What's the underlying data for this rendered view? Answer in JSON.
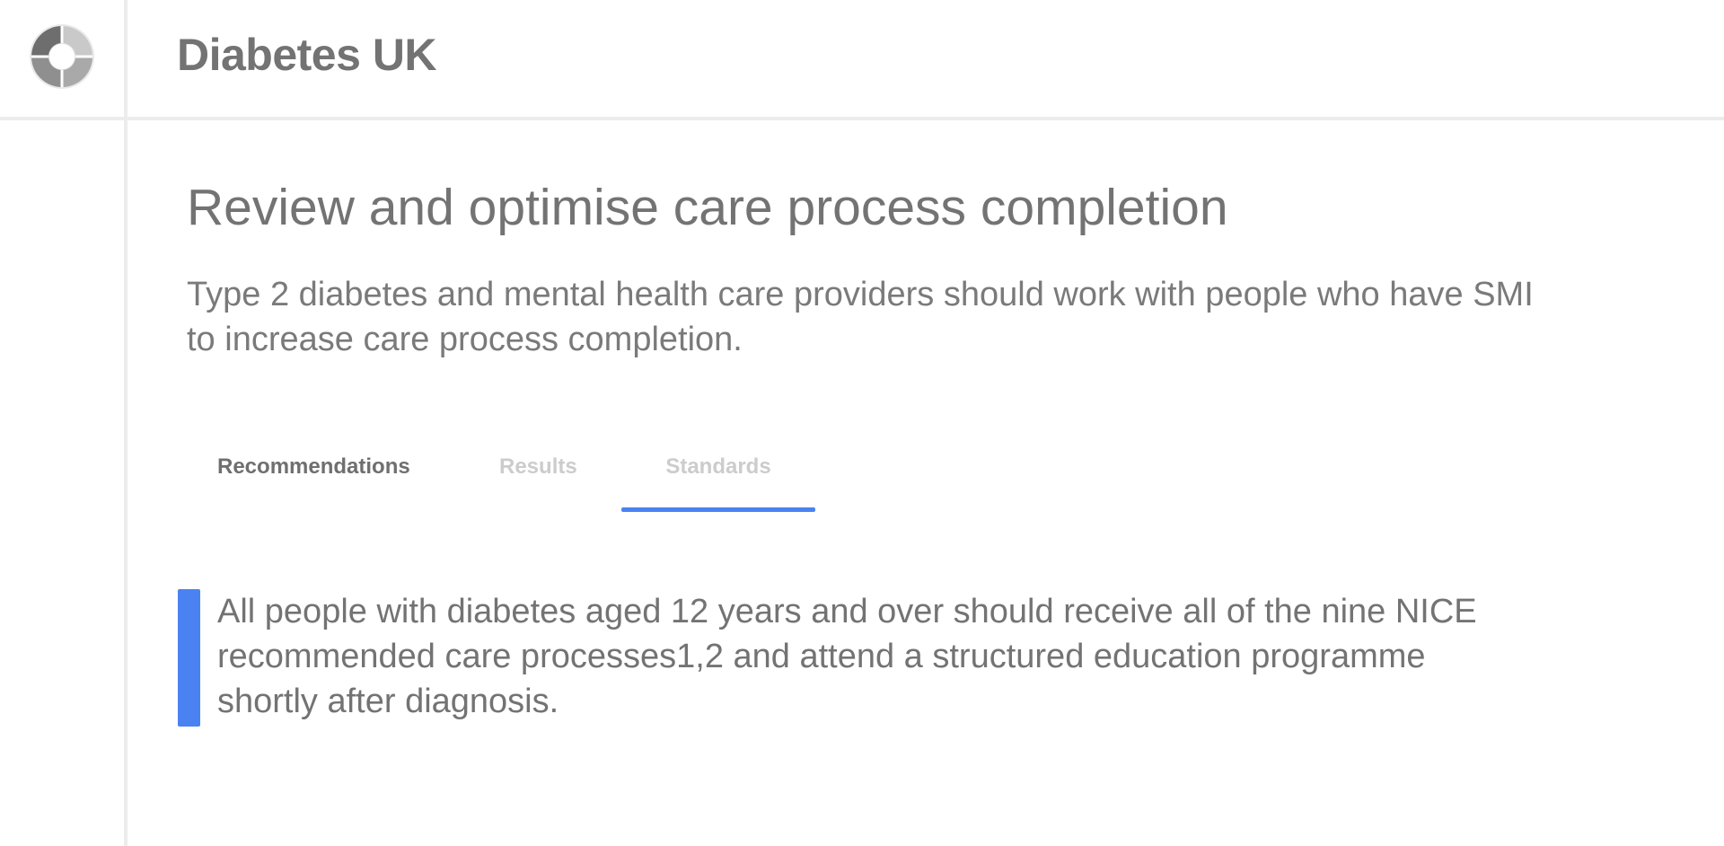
{
  "header": {
    "app_title": "Diabetes UK",
    "logo_icon": "circular-arrows-logo-icon"
  },
  "main": {
    "title": "Review and optimise care process completion",
    "subtitle": "Type 2 diabetes and mental health care providers should work with people who have SMI to increase care process completion.",
    "tabs": [
      {
        "label": "Recommendations",
        "state": "default"
      },
      {
        "label": "Results",
        "state": "muted"
      },
      {
        "label": "Standards",
        "state": "selected"
      }
    ],
    "callout": {
      "text": "All people with diabetes aged 12 years and over should receive all of the nine NICE recommended care processes1,2 and attend a structured education programme shortly after diagnosis."
    }
  },
  "colors": {
    "accent": "#4a83f1",
    "text": "#737373",
    "muted": "#cccccc",
    "divider": "#ececec"
  }
}
